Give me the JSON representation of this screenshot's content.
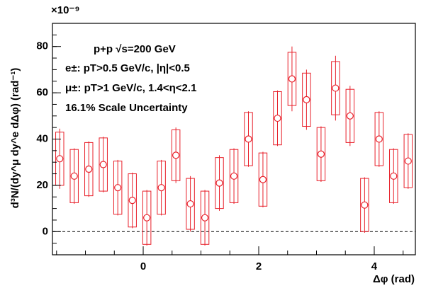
{
  "chart_data": {
    "type": "errorbar",
    "multiplier": "×10⁻⁹",
    "ylabel": "d³N/(dy^μ dy^e dΔφ) (rad⁻¹)",
    "xlabel": "Δφ (rad)",
    "annotations": [
      "p+p √s=200 GeV",
      "e±: pT>0.5 GeV/c, |η|<0.5",
      "μ±: pT>1 GeV/c, 1.4<η<2.1",
      "16.1% Scale Uncertainty"
    ],
    "color": "#e8202a",
    "x": [
      -1.445,
      -1.194,
      -0.942,
      -0.691,
      -0.44,
      -0.188,
      0.063,
      0.314,
      0.566,
      0.817,
      1.068,
      1.319,
      1.571,
      1.822,
      2.073,
      2.325,
      2.576,
      2.827,
      3.079,
      3.33,
      3.581,
      3.833,
      4.084,
      4.335,
      4.587
    ],
    "values": [
      31.5,
      24,
      27,
      29,
      19,
      13.5,
      6,
      19,
      33,
      12,
      6,
      21,
      24,
      40,
      22.5,
      49,
      66,
      57,
      33.5,
      62,
      50,
      11.5,
      40,
      24,
      30.5
    ],
    "errors": [
      13,
      12,
      12,
      12,
      12,
      12,
      12,
      12,
      12,
      12,
      12,
      12,
      12,
      12,
      12,
      12,
      14,
      13,
      12,
      14,
      13,
      12,
      12,
      12,
      12
    ],
    "sys": [
      11.5,
      11.5,
      11.5,
      11.5,
      11.5,
      11.5,
      11.5,
      11.5,
      11,
      11,
      11.5,
      11,
      11.5,
      11.5,
      11.5,
      11.5,
      11.5,
      11.5,
      11.5,
      11.5,
      11.5,
      11.5,
      11.5,
      11.5,
      11.5
    ],
    "xlim": [
      -1.571,
      4.712
    ],
    "xticks": [
      0,
      2,
      4
    ],
    "ylim": [
      -10,
      90
    ],
    "yticks": [
      0,
      20,
      40,
      60,
      80
    ]
  }
}
